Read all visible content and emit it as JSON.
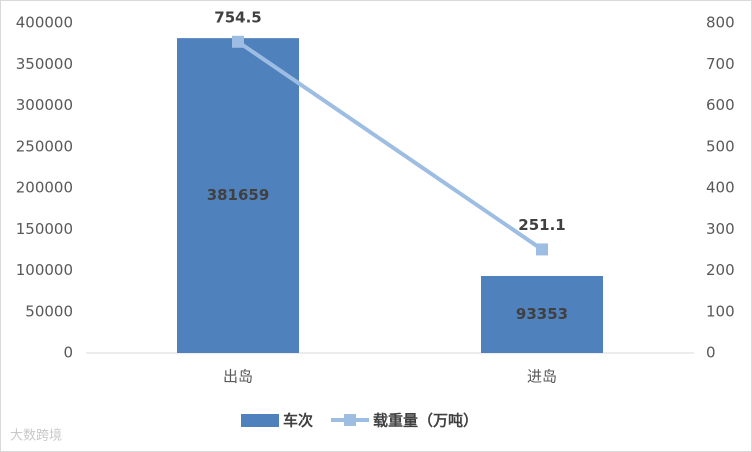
{
  "chart_data": {
    "type": "combo",
    "categories": [
      "出岛",
      "进岛"
    ],
    "series": [
      {
        "name": "车次",
        "type": "bar",
        "color": "#4f81bd",
        "values": [
          381659,
          93353
        ]
      },
      {
        "name": "载重量（万吨）",
        "type": "line",
        "axis": "y2",
        "color": "#9dbde3",
        "values": [
          754.5,
          251.1
        ]
      }
    ],
    "ylim": [
      0,
      400000
    ],
    "yticks": [
      0,
      50000,
      100000,
      150000,
      200000,
      250000,
      300000,
      350000,
      400000
    ],
    "y2lim": [
      0,
      800
    ],
    "y2ticks": [
      0,
      100,
      200,
      300,
      400,
      500,
      600,
      700,
      800
    ],
    "grid": false,
    "legend": "bottom",
    "watermark": "大数跨境"
  }
}
